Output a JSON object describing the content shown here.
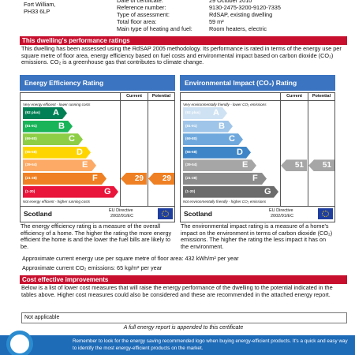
{
  "header": {
    "address": [
      "Fort William,",
      "PH33 6LP"
    ],
    "details": [
      {
        "label": "Date of certificate:",
        "value": "29 October 2010"
      },
      {
        "label": "Reference number:",
        "value": "9130-2475-3200-9120-7335"
      },
      {
        "label": "Type of assessment:",
        "value": "RdSAP, existing dwelling"
      },
      {
        "label": "Total floor area:",
        "value": "59 m²"
      },
      {
        "label": "Main type of heating and fuel:",
        "value": "Room heaters, electric"
      }
    ]
  },
  "ratings_section": {
    "title": "This dwelling's performance ratings",
    "intro": "This dwelling has been assessed using the RdSAP 2005 methodology. Its performance is rated in terms of the energy use per square metre of floor area, energy efficiency based on fuel costs and environmental impact based on carbon dioxide (CO₂) emissions. CO₂ is a greenhouse gas that contributes to climate change."
  },
  "charts": [
    {
      "title": "Energy Efficiency Rating",
      "current_heading": "Current",
      "potential_heading": "Potential",
      "top_note": "Very energy efficient - lower running costs",
      "bottom_note": "Not energy efficient - higher running costs",
      "bands": [
        {
          "range": "(92 plus)",
          "letter": "A"
        },
        {
          "range": "(81-91)",
          "letter": "B"
        },
        {
          "range": "(69-80)",
          "letter": "C"
        },
        {
          "range": "(55-68)",
          "letter": "D"
        },
        {
          "range": "(39-54)",
          "letter": "E"
        },
        {
          "range": "(21-38)",
          "letter": "F"
        },
        {
          "range": "(1-20)",
          "letter": "G"
        }
      ],
      "current": "29",
      "potential": "29",
      "country": "Scotland",
      "directive": "EU Directive",
      "directive_ref": "2002/91/EC",
      "description": "The energy efficiency rating is a measure of the overall efficiency of a home. The higher the rating the more energy efficient the home is and the lower the fuel bills are likely to be."
    },
    {
      "title": "Environmental Impact (CO₂) Rating",
      "current_heading": "Current",
      "potential_heading": "Potential",
      "top_note": "Very environmentally friendly - lower CO₂ emissions",
      "bottom_note": "Not environmentally friendly - higher CO₂ emissions",
      "bands": [
        {
          "range": "(92 plus)",
          "letter": "A"
        },
        {
          "range": "(81-91)",
          "letter": "B"
        },
        {
          "range": "(69-80)",
          "letter": "C"
        },
        {
          "range": "(55-68)",
          "letter": "D"
        },
        {
          "range": "(39-54)",
          "letter": "E"
        },
        {
          "range": "(21-38)",
          "letter": "F"
        },
        {
          "range": "(1-20)",
          "letter": "G"
        }
      ],
      "current": "51",
      "potential": "51",
      "country": "Scotland",
      "directive": "EU Directive",
      "directive_ref": "2002/91/EC",
      "description": "The environmental impact rating is a measure of a home's impact on the environment in terms of carbon dioxide (CO₂) emissions. The higher the rating the less impact it has on the environment."
    }
  ],
  "usage": [
    "Approximate current energy use per square metre of floor area: 432 kWh/m² per year",
    "Approximate current CO₂ emissions: 65 kg/m² per year"
  ],
  "improvements": {
    "title": "Cost effective improvements",
    "intro": "Below is a list of lower cost measures that will raise the energy performance of the dwelling to the potential indicated in the tables above. Higher cost measures could also be considered and these are recommended in the attached energy report.",
    "table_text": "Not applicable"
  },
  "report_note": "A full energy report is appended to this certificate",
  "footer": "Remember to look for the energy saving recommended logo when buying energy-efficient products. It's a quick and easy way to identify the most energy-efficient products on the market."
}
